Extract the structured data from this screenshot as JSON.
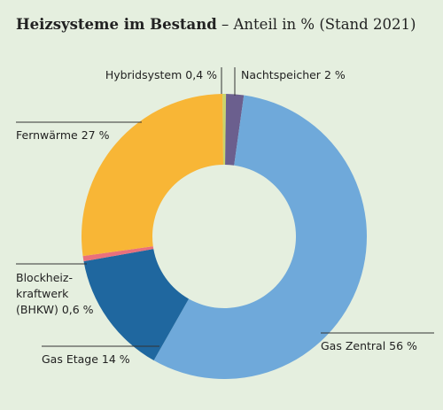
{
  "chart_data": {
    "type": "donut",
    "title": "Heizsysteme im Bestand",
    "subtitle": "– Anteil in % (Stand 2021)",
    "categories": [
      "Hybridsystem",
      "Nachtspeicher",
      "Gas Zentral",
      "Gas Etage",
      "Blockheiz-kraftwerk (BHKW)",
      "Fernwärme"
    ],
    "values": [
      0.4,
      2,
      56,
      14,
      0.6,
      27
    ],
    "value_labels": [
      "0,4 %",
      "2 %",
      "56 %",
      "14 %",
      "0,6 %",
      "27 %"
    ],
    "colors": [
      "#c9d46c",
      "#6b5f8e",
      "#6fa9da",
      "#1f679f",
      "#e9707c",
      "#f8b636"
    ]
  }
}
